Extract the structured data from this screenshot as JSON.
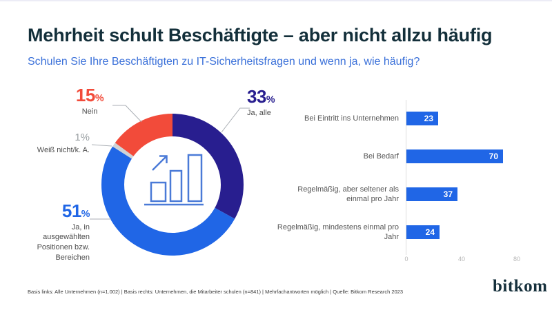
{
  "header": {
    "title": "Mehrheit schult Beschäftigte – aber nicht allzu häufig",
    "subtitle": "Schulen Sie Ihre Beschäftigten zu IT-Sicherheitsfragen und wenn ja, wie häufig?"
  },
  "chart_data": [
    {
      "type": "pie",
      "variant": "donut",
      "unit": "%",
      "start_angle": "top",
      "direction": "clockwise",
      "center_icon": "growth-bar-chart-icon",
      "slices": [
        {
          "label": "Ja, alle",
          "value": 33,
          "color": "#281e8f"
        },
        {
          "label": "Ja, in ausgewählten Positionen bzw. Bereichen",
          "value": 51,
          "color": "#2066e6"
        },
        {
          "label": "Weiß nicht/k. A.",
          "value": 1,
          "color": "#cfd3d6",
          "text_color": "#9aa0a3"
        },
        {
          "label": "Nein",
          "value": 15,
          "color": "#f24b3a"
        }
      ]
    },
    {
      "type": "bar",
      "orientation": "horizontal",
      "categories": [
        "Bei Eintritt ins Unternehmen",
        "Bei Bedarf",
        "Regelmäßig, aber seltener als einmal pro Jahr",
        "Regelmäßig, mindestens einmal pro Jahr"
      ],
      "values": [
        23,
        70,
        37,
        24
      ],
      "bar_color": "#2066e6",
      "value_label_color": "#ffffff",
      "xlim": [
        0,
        80
      ],
      "x_ticks": [
        0,
        40,
        80
      ],
      "grid": false,
      "legend": "none"
    }
  ],
  "footer": {
    "note": "Basis links: Alle Unternehmen (n=1.002) | Basis rechts: Unternehmen, die Mitarbeiter schulen (n=841) | Mehrfachantworten möglich | Quelle: Bitkom Research 2023",
    "logo": "bitkom"
  }
}
